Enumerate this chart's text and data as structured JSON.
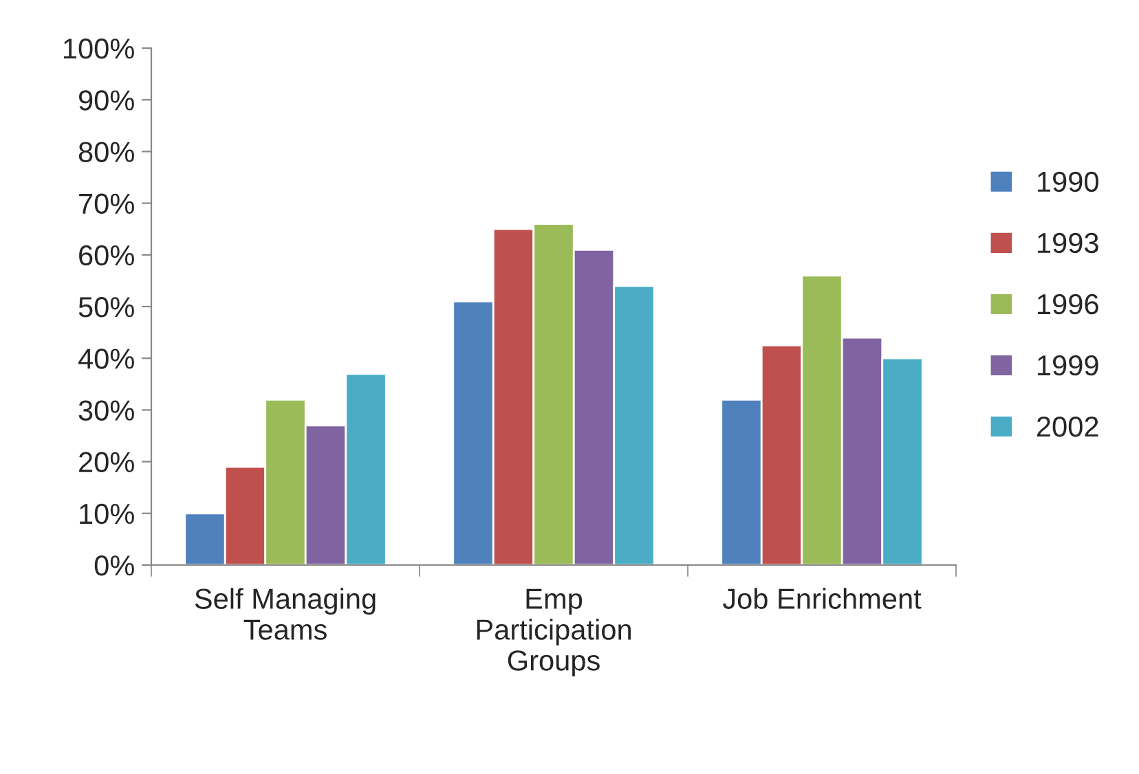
{
  "chart_data": {
    "type": "bar",
    "categories": [
      "Self Managing Teams",
      "Emp Participation Groups",
      "Job Enrichment"
    ],
    "series": [
      {
        "name": "1990",
        "color": "#4f81bd",
        "values": [
          10,
          51,
          32
        ]
      },
      {
        "name": "1993",
        "color": "#c0504d",
        "values": [
          19,
          65,
          42.5
        ]
      },
      {
        "name": "1996",
        "color": "#9bbb59",
        "values": [
          32,
          66,
          56
        ]
      },
      {
        "name": "1999",
        "color": "#8064a2",
        "values": [
          27,
          61,
          44
        ]
      },
      {
        "name": "2002",
        "color": "#4bacc6",
        "values": [
          37,
          54,
          40
        ]
      }
    ],
    "ylim": [
      0,
      100
    ],
    "yticks": [
      {
        "value": 0,
        "label": "0%"
      },
      {
        "value": 10,
        "label": "10%"
      },
      {
        "value": 20,
        "label": "20%"
      },
      {
        "value": 30,
        "label": "30%"
      },
      {
        "value": 40,
        "label": "40%"
      },
      {
        "value": 50,
        "label": "50%"
      },
      {
        "value": 60,
        "label": "60%"
      },
      {
        "value": 70,
        "label": "70%"
      },
      {
        "value": 80,
        "label": "80%"
      },
      {
        "value": 90,
        "label": "90%"
      },
      {
        "value": 100,
        "label": "100%"
      }
    ],
    "grid": false,
    "legend": "right"
  }
}
